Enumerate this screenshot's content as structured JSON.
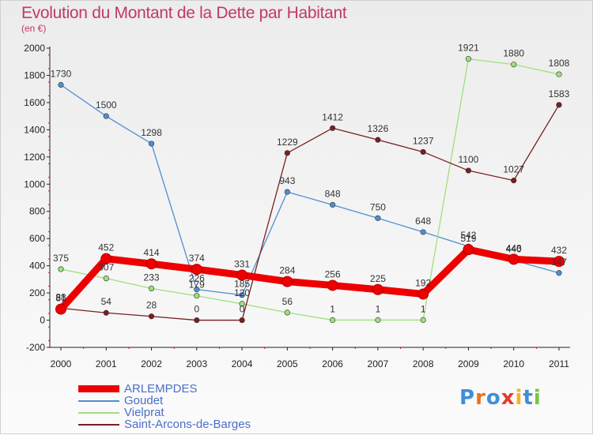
{
  "header": {
    "title": "Evolution du Montant de la Dette par Habitant",
    "subtitle": "(en €)"
  },
  "logo": {
    "letters": [
      "P",
      "r",
      "o",
      "x",
      "i",
      "t",
      "i"
    ],
    "colors": [
      "#3f8fd6",
      "#e8731c",
      "#3f8fd6",
      "#e83a2c",
      "#f2b51d",
      "#3f8fd6",
      "#7cc242"
    ]
  },
  "chart_data": {
    "type": "line",
    "categories": [
      "2000",
      "2001",
      "2002",
      "2003",
      "2004",
      "2005",
      "2006",
      "2007",
      "2008",
      "2009",
      "2010",
      "2011"
    ],
    "ylim": [
      -200,
      2000
    ],
    "yticks": [
      "-200",
      "0",
      "200",
      "400",
      "600",
      "800",
      "1000",
      "1200",
      "1400",
      "1600",
      "1800",
      "2000"
    ],
    "grid": false,
    "legend_position": "bottom-left",
    "series": [
      {
        "name": "ARLEMPDES",
        "color": "#ee0000",
        "values": [
          81,
          452,
          414,
          374,
          331,
          284,
          256,
          225,
          192,
          519,
          448,
          432
        ],
        "labels": [
          "81",
          "452",
          "414",
          "374",
          "331",
          "284",
          "256",
          "225",
          "192",
          "519",
          "448",
          "432"
        ]
      },
      {
        "name": "Goudet",
        "color": "#4f8fd0",
        "values": [
          1730,
          1500,
          1298,
          226,
          185,
          943,
          848,
          750,
          648,
          542,
          440,
          347
        ],
        "labels": [
          "1730",
          "1500",
          "1298",
          "226",
          "185",
          "943",
          "848",
          "750",
          "648",
          "542",
          "440",
          "347"
        ]
      },
      {
        "name": "Vielprat",
        "color": "#9ee07a",
        "values": [
          375,
          307,
          233,
          179,
          120,
          56,
          1,
          1,
          1,
          1921,
          1880,
          1808
        ],
        "labels": [
          "375",
          "307",
          "233",
          "179",
          "120",
          "56",
          "1",
          "1",
          "1",
          "1921",
          "1880",
          "1808"
        ]
      },
      {
        "name": "Saint-Arcons-de-Barges",
        "color": "#7a1f1f",
        "values": [
          88,
          54,
          28,
          0,
          0,
          1229,
          1412,
          1326,
          1237,
          1100,
          1027,
          1583
        ],
        "labels": [
          "88",
          "54",
          "28",
          "0",
          "0",
          "1229",
          "1412",
          "1326",
          "1237",
          "1100",
          "1027",
          "1583"
        ]
      }
    ]
  }
}
